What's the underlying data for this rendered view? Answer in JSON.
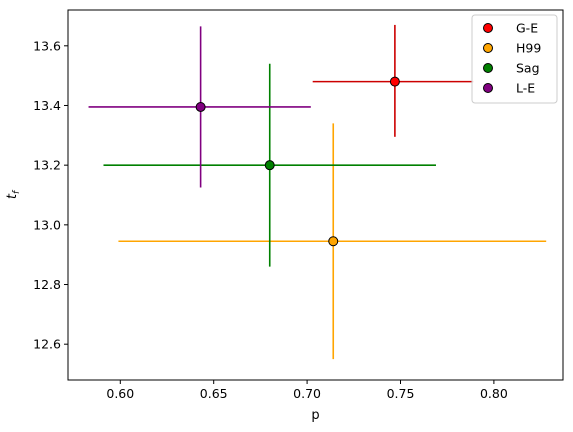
{
  "chart_data": {
    "type": "scatter",
    "xlabel": "p",
    "ylabel": "t_f",
    "xlim": [
      0.572,
      0.837
    ],
    "ylim": [
      12.48,
      13.72
    ],
    "xticks": [
      0.6,
      0.65,
      0.7,
      0.75,
      0.8
    ],
    "xtick_labels": [
      "0.60",
      "0.65",
      "0.70",
      "0.75",
      "0.80"
    ],
    "yticks": [
      12.6,
      12.8,
      13.0,
      13.2,
      13.4,
      13.6
    ],
    "ytick_labels": [
      "12.6",
      "12.8",
      "13.0",
      "13.2",
      "13.4",
      "13.6"
    ],
    "grid": false,
    "legend_position": "top-right",
    "series": [
      {
        "name": "G-E",
        "color": "#ff0000",
        "errcolor": "#cc0000",
        "x": 0.747,
        "y": 13.48,
        "xerr": [
          0.703,
          0.789
        ],
        "yerr": [
          13.295,
          13.67
        ]
      },
      {
        "name": "H99",
        "color": "#ffa500",
        "errcolor": "#ffa500",
        "x": 0.714,
        "y": 12.945,
        "xerr": [
          0.599,
          0.828
        ],
        "yerr": [
          12.55,
          13.34
        ]
      },
      {
        "name": "Sag",
        "color": "#008000",
        "errcolor": "#008000",
        "x": 0.68,
        "y": 13.2,
        "xerr": [
          0.591,
          0.769
        ],
        "yerr": [
          12.86,
          13.54
        ]
      },
      {
        "name": "L-E",
        "color": "#800080",
        "errcolor": "#800080",
        "x": 0.643,
        "y": 13.395,
        "xerr": [
          0.583,
          0.702
        ],
        "yerr": [
          13.125,
          13.665
        ]
      }
    ]
  }
}
